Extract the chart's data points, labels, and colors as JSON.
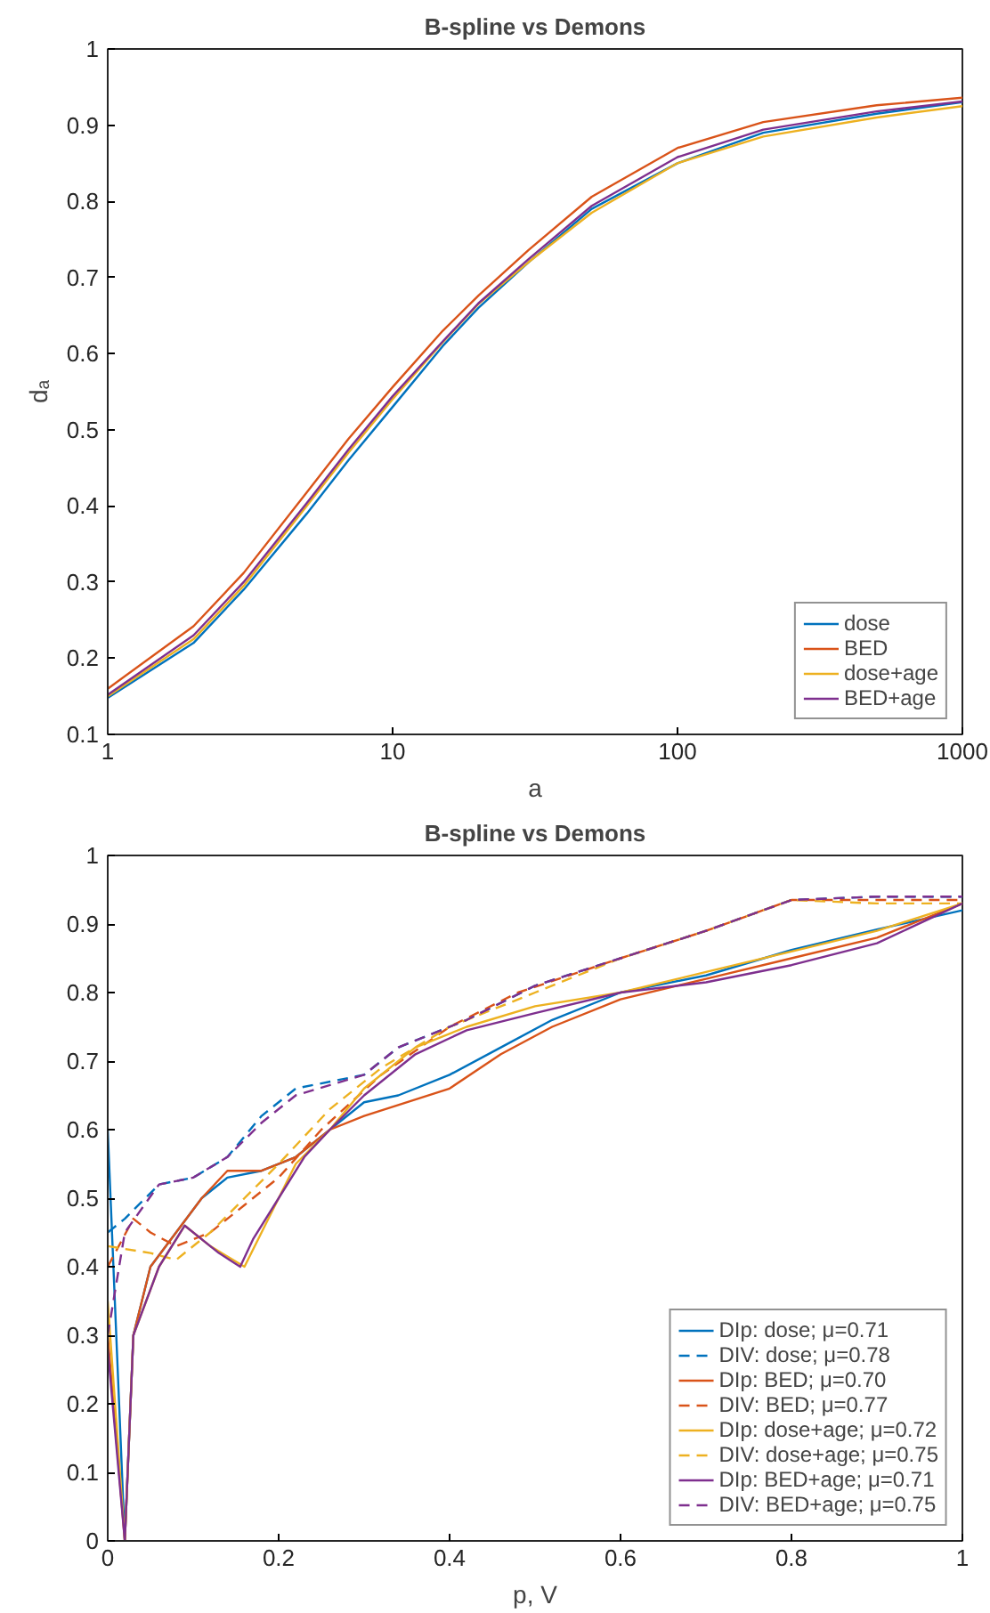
{
  "chart_data": [
    {
      "type": "line",
      "title": "B-spline vs Demons",
      "xlabel": "a",
      "ylabel": "dₐ",
      "log": "x",
      "xlim": [
        1,
        1000
      ],
      "xticks": [
        1,
        10,
        100,
        1000
      ],
      "ylim": [
        0.1,
        1
      ],
      "yticks": [
        0.1,
        0.2,
        0.3,
        0.4,
        0.5,
        0.6,
        0.7,
        0.8,
        0.9,
        1
      ],
      "grid": false,
      "legend": "bottom right",
      "line_style": "solid",
      "marker": "none",
      "x": [
        1,
        2,
        3,
        5,
        7,
        10,
        15,
        20,
        30,
        50,
        100,
        200,
        500,
        1000
      ],
      "series": [
        {
          "name": "dose",
          "color": "#0072bd",
          "values": [
            0.148,
            0.22,
            0.29,
            0.39,
            0.46,
            0.53,
            0.61,
            0.66,
            0.72,
            0.79,
            0.85,
            0.89,
            0.915,
            0.93
          ]
        },
        {
          "name": "BED",
          "color": "#d95319",
          "values": [
            0.16,
            0.242,
            0.312,
            0.418,
            0.488,
            0.556,
            0.63,
            0.676,
            0.736,
            0.806,
            0.87,
            0.904,
            0.926,
            0.936
          ]
        },
        {
          "name": "dose+age",
          "color": "#edb120",
          "values": [
            0.15,
            0.225,
            0.295,
            0.4,
            0.47,
            0.54,
            0.615,
            0.665,
            0.72,
            0.785,
            0.85,
            0.885,
            0.91,
            0.925
          ]
        },
        {
          "name": "BED+age",
          "color": "#7e2f8e",
          "values": [
            0.152,
            0.23,
            0.3,
            0.404,
            0.474,
            0.544,
            0.616,
            0.666,
            0.724,
            0.794,
            0.858,
            0.894,
            0.918,
            0.931
          ]
        }
      ]
    },
    {
      "type": "line",
      "title": "B-spline vs Demons",
      "xlabel": "p, V",
      "xlim": [
        0,
        1
      ],
      "xticks": [
        0,
        0.2,
        0.4,
        0.6,
        0.8,
        1
      ],
      "ylim": [
        0,
        1
      ],
      "yticks": [
        0,
        0.1,
        0.2,
        0.3,
        0.4,
        0.5,
        0.6,
        0.7,
        0.8,
        0.9,
        1
      ],
      "grid": false,
      "legend": "bottom right",
      "marker": "none",
      "series": [
        {
          "name": "DIp: dose; μ=0.71",
          "color": "#0072bd",
          "line_style": "solid",
          "x": [
            0,
            0.02,
            0.03,
            0.05,
            0.08,
            0.11,
            0.14,
            0.18,
            0.22,
            0.26,
            0.3,
            0.34,
            0.4,
            0.46,
            0.52,
            0.6,
            0.7,
            0.8,
            0.9,
            1
          ],
          "values": [
            0.6,
            0,
            0.3,
            0.4,
            0.45,
            0.5,
            0.53,
            0.54,
            0.56,
            0.6,
            0.64,
            0.65,
            0.68,
            0.72,
            0.76,
            0.8,
            0.825,
            0.862,
            0.892,
            0.92
          ]
        },
        {
          "name": "DIV: dose; μ=0.78",
          "color": "#0072bd",
          "line_style": "dashed",
          "x": [
            0,
            0.02,
            0.06,
            0.1,
            0.14,
            0.18,
            0.22,
            0.3,
            0.34,
            0.42,
            0.5,
            0.6,
            0.7,
            0.8,
            0.9,
            1
          ],
          "values": [
            0.45,
            0.47,
            0.52,
            0.53,
            0.56,
            0.62,
            0.66,
            0.68,
            0.72,
            0.76,
            0.81,
            0.85,
            0.89,
            0.935,
            0.94,
            0.94
          ]
        },
        {
          "name": "DIp: BED; μ=0.70",
          "color": "#d95319",
          "line_style": "solid",
          "x": [
            0,
            0.02,
            0.03,
            0.05,
            0.08,
            0.11,
            0.14,
            0.18,
            0.22,
            0.26,
            0.3,
            0.4,
            0.46,
            0.52,
            0.6,
            0.7,
            0.8,
            0.9,
            1
          ],
          "values": [
            0.3,
            0,
            0.3,
            0.4,
            0.45,
            0.5,
            0.54,
            0.54,
            0.56,
            0.6,
            0.62,
            0.66,
            0.71,
            0.75,
            0.79,
            0.82,
            0.85,
            0.88,
            0.93
          ]
        },
        {
          "name": "DIV: BED; μ=0.77",
          "color": "#d95319",
          "line_style": "dashed",
          "x": [
            0,
            0.03,
            0.05,
            0.08,
            0.12,
            0.16,
            0.2,
            0.25,
            0.32,
            0.4,
            0.48,
            0.6,
            0.7,
            0.8,
            0.9,
            1
          ],
          "values": [
            0.4,
            0.47,
            0.45,
            0.43,
            0.45,
            0.49,
            0.53,
            0.6,
            0.68,
            0.75,
            0.8,
            0.85,
            0.89,
            0.935,
            0.935,
            0.935
          ]
        },
        {
          "name": "DIp: dose+age; μ=0.72",
          "color": "#edb120",
          "line_style": "solid",
          "x": [
            0,
            0.02,
            0.03,
            0.06,
            0.09,
            0.12,
            0.16,
            0.18,
            0.22,
            0.26,
            0.3,
            0.36,
            0.42,
            0.5,
            0.6,
            0.7,
            0.8,
            0.9,
            1
          ],
          "values": [
            0.35,
            0,
            0.3,
            0.4,
            0.46,
            0.43,
            0.4,
            0.45,
            0.55,
            0.6,
            0.66,
            0.72,
            0.75,
            0.78,
            0.8,
            0.83,
            0.86,
            0.89,
            0.93
          ]
        },
        {
          "name": "DIV: dose+age; μ=0.75",
          "color": "#edb120",
          "line_style": "dashed",
          "x": [
            0,
            0.05,
            0.08,
            0.12,
            0.16,
            0.2,
            0.26,
            0.32,
            0.4,
            0.5,
            0.6,
            0.7,
            0.8,
            0.9,
            1
          ],
          "values": [
            0.43,
            0.42,
            0.41,
            0.45,
            0.5,
            0.55,
            0.63,
            0.69,
            0.75,
            0.8,
            0.85,
            0.89,
            0.935,
            0.93,
            0.93
          ]
        },
        {
          "name": "DIp: BED+age; μ=0.71",
          "color": "#7e2f8e",
          "line_style": "solid",
          "x": [
            0,
            0.02,
            0.03,
            0.06,
            0.09,
            0.13,
            0.155,
            0.17,
            0.2,
            0.23,
            0.26,
            0.3,
            0.36,
            0.42,
            0.5,
            0.6,
            0.7,
            0.8,
            0.9,
            1
          ],
          "values": [
            0.28,
            0,
            0.3,
            0.4,
            0.46,
            0.42,
            0.4,
            0.44,
            0.5,
            0.56,
            0.6,
            0.65,
            0.71,
            0.745,
            0.77,
            0.8,
            0.815,
            0.84,
            0.872,
            0.93
          ]
        },
        {
          "name": "DIV: BED+age; μ=0.75",
          "color": "#7e2f8e",
          "line_style": "dashed",
          "x": [
            0,
            0.02,
            0.06,
            0.1,
            0.14,
            0.18,
            0.22,
            0.3,
            0.34,
            0.42,
            0.5,
            0.6,
            0.7,
            0.8,
            0.9,
            1
          ],
          "values": [
            0.3,
            0.45,
            0.52,
            0.53,
            0.56,
            0.61,
            0.65,
            0.68,
            0.72,
            0.76,
            0.81,
            0.85,
            0.89,
            0.935,
            0.94,
            0.94
          ]
        }
      ]
    }
  ]
}
